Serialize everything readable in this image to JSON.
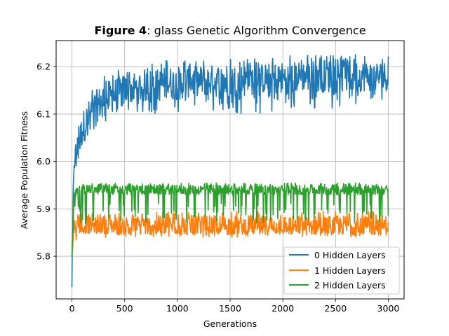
{
  "chart_data": {
    "type": "line",
    "title_bold": "Figure 4",
    "title_rest": ": glass Genetic Algorithm Convergence",
    "xlabel": "Generations",
    "ylabel": "Average Population Fitness",
    "xlim": [
      -150,
      3150
    ],
    "ylim": [
      5.71,
      6.255
    ],
    "xticks": [
      0,
      500,
      1000,
      1500,
      2000,
      2500,
      3000
    ],
    "xtick_labels": [
      "0",
      "500",
      "1000",
      "1500",
      "2000",
      "2500",
      "3000"
    ],
    "yticks": [
      5.8,
      5.9,
      6.0,
      6.1,
      6.2
    ],
    "ytick_labels": [
      "5.8",
      "5.9",
      "6.0",
      "6.1",
      "6.2"
    ],
    "grid": true,
    "legend_position": "lower-right",
    "x": [
      0,
      20,
      40,
      60,
      80,
      100,
      150,
      200,
      250,
      300,
      400,
      500,
      600,
      700,
      800,
      900,
      1000,
      1200,
      1400,
      1600,
      1800,
      2000,
      2200,
      2400,
      2600,
      2800,
      3000
    ],
    "series": [
      {
        "name": "0 Hidden Layers",
        "color": "#1f77b4",
        "values": [
          5.735,
          6.0,
          6.02,
          6.03,
          6.05,
          6.07,
          6.09,
          6.11,
          6.12,
          6.13,
          6.14,
          6.15,
          6.155,
          6.16,
          6.16,
          6.165,
          6.165,
          6.17,
          6.17,
          6.17,
          6.175,
          6.175,
          6.18,
          6.18,
          6.18,
          6.18,
          6.18
        ],
        "upper": [
          5.8,
          6.04,
          6.06,
          6.08,
          6.1,
          6.12,
          6.14,
          6.16,
          6.17,
          6.18,
          6.19,
          6.2,
          6.205,
          6.21,
          6.21,
          6.215,
          6.215,
          6.215,
          6.22,
          6.22,
          6.22,
          6.225,
          6.225,
          6.23,
          6.23,
          6.225,
          6.225
        ],
        "lower": [
          5.735,
          5.96,
          5.98,
          5.99,
          6.0,
          6.01,
          6.04,
          6.06,
          6.07,
          6.08,
          6.09,
          6.1,
          6.1,
          6.1,
          6.1,
          6.1,
          6.1,
          6.11,
          6.1,
          6.1,
          6.1,
          6.11,
          6.11,
          6.11,
          6.11,
          6.12,
          6.135
        ]
      },
      {
        "name": "1 Hidden Layers",
        "color": "#ff7f0e",
        "values": [
          5.8,
          5.86,
          5.86,
          5.865,
          5.865,
          5.865,
          5.865,
          5.865,
          5.865,
          5.865,
          5.865,
          5.865,
          5.865,
          5.865,
          5.865,
          5.865,
          5.865,
          5.865,
          5.865,
          5.865,
          5.865,
          5.865,
          5.865,
          5.865,
          5.865,
          5.865,
          5.865
        ],
        "upper": [
          5.8,
          5.88,
          5.885,
          5.89,
          5.89,
          5.89,
          5.89,
          5.89,
          5.89,
          5.89,
          5.89,
          5.895,
          5.895,
          5.895,
          5.895,
          5.895,
          5.895,
          5.895,
          5.895,
          5.895,
          5.895,
          5.895,
          5.895,
          5.895,
          5.895,
          5.895,
          5.895
        ],
        "lower": [
          5.8,
          5.83,
          5.835,
          5.835,
          5.835,
          5.84,
          5.84,
          5.84,
          5.84,
          5.84,
          5.84,
          5.84,
          5.84,
          5.84,
          5.84,
          5.84,
          5.84,
          5.84,
          5.84,
          5.84,
          5.84,
          5.84,
          5.84,
          5.84,
          5.84,
          5.84,
          5.845
        ]
      },
      {
        "name": "2 Hidden Layers",
        "color": "#2ca02c",
        "values": [
          5.8,
          5.93,
          5.935,
          5.94,
          5.94,
          5.94,
          5.94,
          5.94,
          5.94,
          5.94,
          5.94,
          5.94,
          5.94,
          5.94,
          5.94,
          5.94,
          5.94,
          5.94,
          5.94,
          5.94,
          5.94,
          5.94,
          5.94,
          5.94,
          5.94,
          5.94,
          5.94
        ],
        "upper": [
          5.8,
          5.945,
          5.95,
          5.952,
          5.952,
          5.952,
          5.953,
          5.953,
          5.953,
          5.953,
          5.954,
          5.954,
          5.954,
          5.954,
          5.954,
          5.954,
          5.954,
          5.955,
          5.955,
          5.955,
          5.955,
          5.955,
          5.955,
          5.955,
          5.955,
          5.955,
          5.955
        ],
        "lower": [
          5.8,
          5.875,
          5.87,
          5.87,
          5.865,
          5.865,
          5.87,
          5.87,
          5.87,
          5.87,
          5.87,
          5.87,
          5.87,
          5.87,
          5.87,
          5.87,
          5.87,
          5.87,
          5.87,
          5.87,
          5.87,
          5.87,
          5.87,
          5.87,
          5.87,
          5.87,
          5.87
        ]
      }
    ]
  }
}
